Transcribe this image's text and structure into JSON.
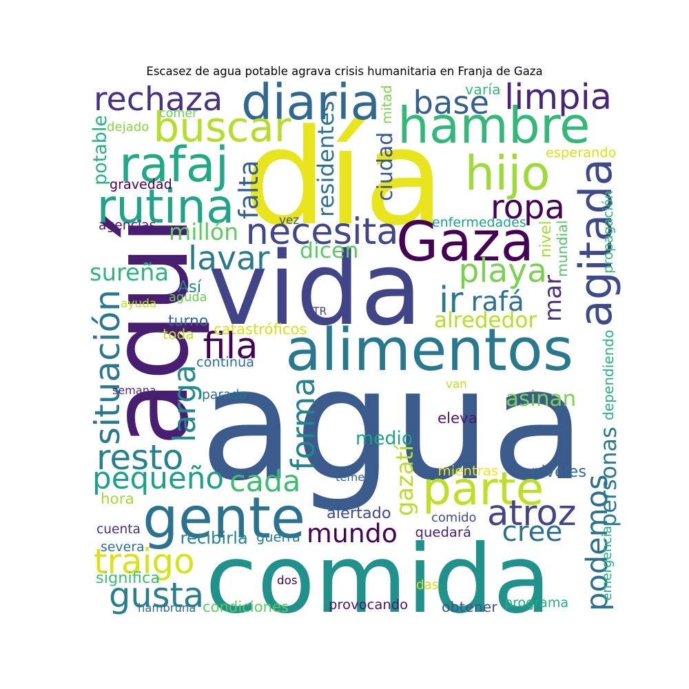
{
  "title": "Escasez de agua potable agrava crisis humanitaria en Franja de Gaza",
  "words": [
    {
      "text": "agua",
      "color": "#3b5b8c"
    },
    {
      "text": "día",
      "color": "#e8e41d"
    },
    {
      "text": "vida",
      "color": "#414487"
    },
    {
      "text": "comida",
      "color": "#21918c"
    },
    {
      "text": "aquí",
      "color": "#481f70"
    },
    {
      "text": "hambre",
      "color": "#35b779"
    },
    {
      "text": "Gaza",
      "color": "#440154"
    },
    {
      "text": "alimentos",
      "color": "#2a788e"
    },
    {
      "text": "gente",
      "color": "#2c728e"
    },
    {
      "text": "diaria",
      "color": "#31688e"
    },
    {
      "text": "buscar",
      "color": "#b5de2b"
    },
    {
      "text": "rafaj",
      "color": "#22a884"
    },
    {
      "text": "rutina",
      "color": "#20a386"
    },
    {
      "text": "rechaza",
      "color": "#46327e"
    },
    {
      "text": "limpia",
      "color": "#482677"
    },
    {
      "text": "base",
      "color": "#355f8d"
    },
    {
      "text": "hijo",
      "color": "#a0da39"
    },
    {
      "text": "agitada",
      "color": "#3e4989"
    },
    {
      "text": "necesita",
      "color": "#404688"
    },
    {
      "text": "ropa",
      "color": "#440154"
    },
    {
      "text": "parte",
      "color": "#bddf26"
    },
    {
      "text": "podemos",
      "color": "#2d708e"
    },
    {
      "text": "atroz",
      "color": "#414487"
    },
    {
      "text": "mundo",
      "color": "#440154"
    },
    {
      "text": "gusta",
      "color": "#287d8e"
    },
    {
      "text": "traigo",
      "color": "#d8e219"
    },
    {
      "text": "pequeño",
      "color": "#1f9e89"
    },
    {
      "text": "cada",
      "color": "#3fbc73"
    },
    {
      "text": "resto",
      "color": "#27808e"
    },
    {
      "text": "situación",
      "color": "#2a788e"
    },
    {
      "text": "larga",
      "color": "#23898e"
    },
    {
      "text": "forma",
      "color": "#25848e"
    },
    {
      "text": "fila",
      "color": "#440154"
    },
    {
      "text": "ir",
      "color": "#2a788e"
    },
    {
      "text": "mar",
      "color": "#472f7d"
    },
    {
      "text": "playa",
      "color": "#7ad151"
    },
    {
      "text": "lavar",
      "color": "#2a788e"
    },
    {
      "text": "cree",
      "color": "#2d708e"
    },
    {
      "text": "asinan",
      "color": "#7ad151"
    },
    {
      "text": "medio",
      "color": "#1fa188"
    },
    {
      "text": "alrededor",
      "color": "#b5de2b"
    },
    {
      "text": "millón",
      "color": "#5ec962"
    },
    {
      "text": "dicen",
      "color": "#5ec962"
    },
    {
      "text": "falta",
      "color": "#355f8d"
    },
    {
      "text": "residentes",
      "color": "#2c728e"
    },
    {
      "text": "ciudad",
      "color": "#38588c"
    },
    {
      "text": "personas",
      "color": "#2a788e"
    },
    {
      "text": "sureña",
      "color": "#2fb47c"
    },
    {
      "text": "rafá",
      "color": "#2c728e"
    },
    {
      "text": "potable",
      "color": "#29af7f"
    },
    {
      "text": "gravedad",
      "color": "#440154"
    },
    {
      "text": "agencias",
      "color": "#481a6c"
    },
    {
      "text": "vez",
      "color": "#3b528b"
    },
    {
      "text": "enfermedades",
      "color": "#1fa188"
    },
    {
      "text": "nivel",
      "color": "#a5db36"
    },
    {
      "text": "mundial",
      "color": "#54c568"
    },
    {
      "text": "propagación",
      "color": "#38b977"
    },
    {
      "text": "esperando",
      "color": "#d8e219"
    },
    {
      "text": "varía",
      "color": "#35b779"
    },
    {
      "text": "comer",
      "color": "#6ece58"
    },
    {
      "text": "dejado",
      "color": "#86d549"
    },
    {
      "text": "mitad",
      "color": "#7ad151"
    },
    {
      "text": "Así",
      "color": "#26828e"
    },
    {
      "text": "ayuda",
      "color": "#c2df23"
    },
    {
      "text": "aguda",
      "color": "#6ccd5a"
    },
    {
      "text": "turno",
      "color": "#31688e"
    },
    {
      "text": "toda",
      "color": "#bddf26"
    },
    {
      "text": "catastróficos",
      "color": "#d2e21b"
    },
    {
      "text": "TR",
      "color": "#3e4989"
    },
    {
      "text": "continúa",
      "color": "#2d708e"
    },
    {
      "text": "dependiendo",
      "color": "#2ab07f"
    },
    {
      "text": "semana",
      "color": "#482878"
    },
    {
      "text": "parado",
      "color": "#2d708e"
    },
    {
      "text": "van",
      "color": "#bddf26"
    },
    {
      "text": "eleva",
      "color": "#48186a"
    },
    {
      "text": "gazatí",
      "color": "#b8de29"
    },
    {
      "text": "mientras",
      "color": "#f1e51d"
    },
    {
      "text": "temen",
      "color": "#355f8d"
    },
    {
      "text": "niveles",
      "color": "#31688e"
    },
    {
      "text": "hora",
      "color": "#9fda3a"
    },
    {
      "text": "alertado",
      "color": "#3e4989"
    },
    {
      "text": "comido",
      "color": "#3e4989"
    },
    {
      "text": "quedará",
      "color": "#482173"
    },
    {
      "text": "emergencia",
      "color": "#2ab07f"
    },
    {
      "text": "cuenta",
      "color": "#472f7d"
    },
    {
      "text": "recibirla",
      "color": "#26828e"
    },
    {
      "text": "guerra",
      "color": "#277f8e"
    },
    {
      "text": "severa",
      "color": "#2c728e"
    },
    {
      "text": "significa",
      "color": "#3dbc74"
    },
    {
      "text": "dos",
      "color": "#440154"
    },
    {
      "text": "das",
      "color": "#d0e11c"
    },
    {
      "text": "hambruna",
      "color": "#31688e"
    },
    {
      "text": "condiciones",
      "color": "#5ec962"
    },
    {
      "text": "provocando",
      "color": "#481a6c"
    },
    {
      "text": "obtener",
      "color": "#3b528b"
    },
    {
      "text": "programa",
      "color": "#25ab82"
    }
  ]
}
